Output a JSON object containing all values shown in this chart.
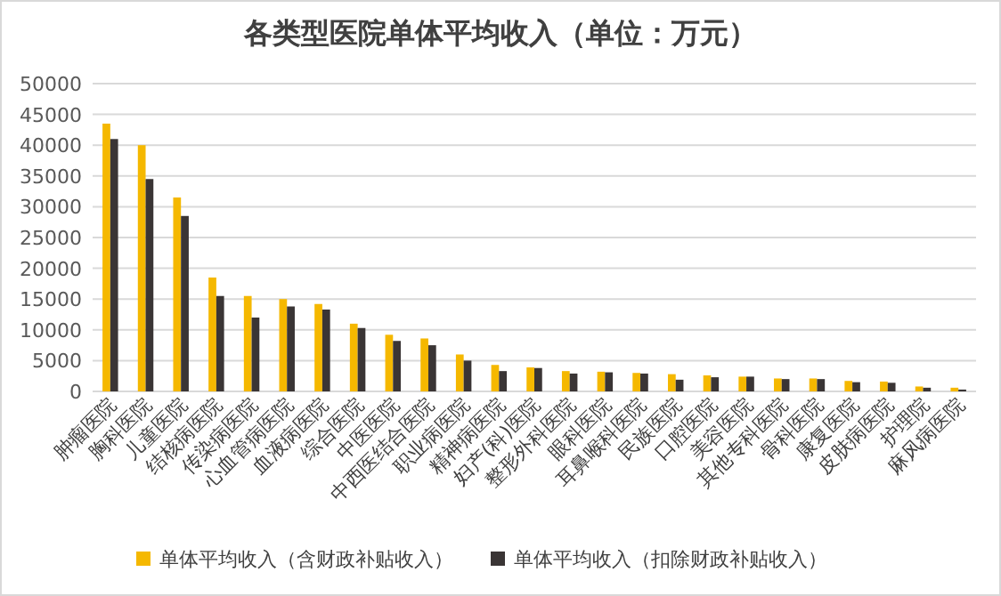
{
  "chart_data": {
    "type": "bar",
    "title": "各类型医院单体平均收入（单位：万元）",
    "categories": [
      "肿瘤医院",
      "胸科医院",
      "儿童医院",
      "结核病医院",
      "传染病医院",
      "心血管病医院",
      "血液病医院",
      "综合医院",
      "中医医院",
      "中西医结合医院",
      "职业病医院",
      "精神病医院",
      "妇产(科)医院",
      "整形外科医院",
      "眼科医院",
      "耳鼻喉科医院",
      "民族医院",
      "口腔医院",
      "美容医院",
      "其他专科医院",
      "骨科医院",
      "康复医院",
      "皮肤病医院",
      "护理院",
      "麻风病医院"
    ],
    "series": [
      {
        "name": "单体平均收入（含财政补贴收入）",
        "color": "#f5b800",
        "values": [
          43500,
          40000,
          31500,
          18500,
          15500,
          15000,
          14200,
          11000,
          9200,
          8600,
          6000,
          4300,
          3900,
          3300,
          3200,
          3000,
          2800,
          2600,
          2400,
          2100,
          2100,
          1700,
          1600,
          800,
          600
        ]
      },
      {
        "name": "单体平均收入（扣除财政补贴收入）",
        "color": "#3a3535",
        "values": [
          41000,
          34500,
          28500,
          15500,
          12000,
          13800,
          13300,
          10300,
          8200,
          7500,
          5000,
          3300,
          3800,
          2900,
          3100,
          2900,
          1900,
          2300,
          2400,
          2000,
          2000,
          1500,
          1400,
          600,
          300
        ]
      }
    ],
    "ylim": [
      0,
      50000
    ],
    "yticks": [
      0,
      5000,
      10000,
      15000,
      20000,
      25000,
      30000,
      35000,
      40000,
      45000,
      50000
    ],
    "grid": "y",
    "legend": "bottom"
  }
}
